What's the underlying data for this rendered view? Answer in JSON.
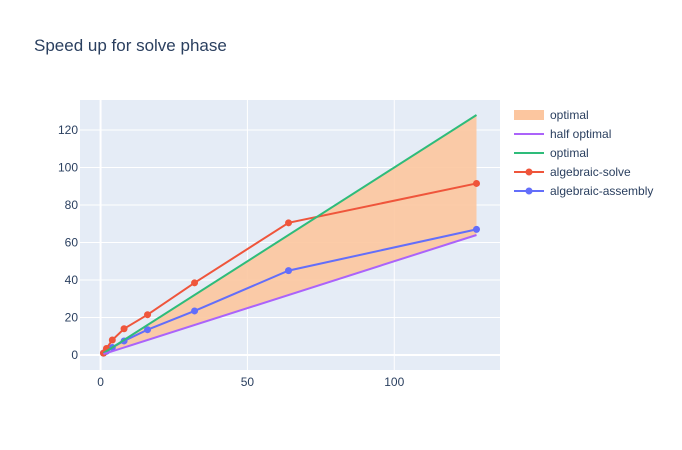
{
  "chart_data": {
    "type": "line",
    "title": "Speed up for solve phase",
    "xlabel": "",
    "ylabel": "",
    "xlim": [
      -7,
      136
    ],
    "ylim": [
      -8,
      136
    ],
    "x_ticks": [
      0,
      50,
      100
    ],
    "y_ticks": [
      0,
      20,
      40,
      60,
      80,
      100,
      120
    ],
    "grid": true,
    "legend_position": "right",
    "background_color": "#e5ecf6",
    "band": {
      "name": "optimal",
      "color": "#fcc69f",
      "x": [
        1,
        128
      ],
      "upper": [
        1,
        128
      ],
      "lower": [
        0.5,
        64
      ]
    },
    "series": [
      {
        "name": "half optimal",
        "color": "#ab63fa",
        "markers": false,
        "x": [
          1,
          128
        ],
        "y": [
          0.5,
          64
        ]
      },
      {
        "name": "optimal",
        "color": "#2ebc7a",
        "markers": false,
        "x": [
          1,
          128
        ],
        "y": [
          1,
          128
        ]
      },
      {
        "name": "algebraic-solve",
        "color": "#ef553b",
        "markers": true,
        "x": [
          1,
          2,
          4,
          8,
          16,
          32,
          64,
          128
        ],
        "y": [
          1,
          3.5,
          8,
          14,
          21.5,
          38.5,
          70.5,
          91.5
        ]
      },
      {
        "name": "algebraic-assembly",
        "color": "#636efa",
        "markers": true,
        "x": [
          1,
          2,
          4,
          8,
          16,
          32,
          64,
          128
        ],
        "y": [
          1,
          2,
          4,
          7.5,
          13.5,
          23.5,
          45,
          67
        ]
      }
    ],
    "legend_entries": [
      "optimal",
      "half optimal",
      "optimal",
      "algebraic-solve",
      "algebraic-assembly"
    ]
  }
}
